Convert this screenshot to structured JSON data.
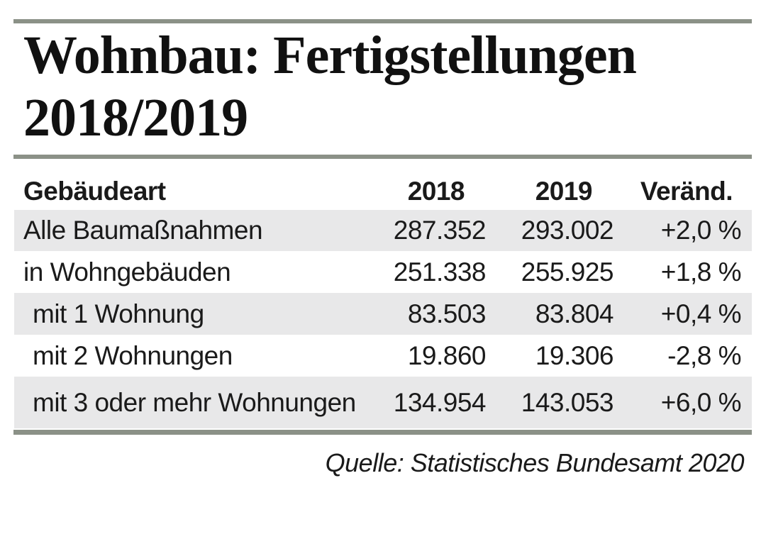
{
  "title": {
    "line1": "Wohnbau: Fertigstellungen",
    "line2": "2018/2019"
  },
  "table": {
    "headers": [
      "Gebäudeart",
      "2018",
      "2019",
      "Veränd."
    ],
    "rows": [
      {
        "label": "Alle Baumaßnahmen",
        "y2018": "287.352",
        "y2019": "293.002",
        "change": "+2,0 %"
      },
      {
        "label": "in Wohngebäuden",
        "y2018": "251.338",
        "y2019": "255.925",
        "change": "+1,8 %"
      },
      {
        "label": "mit 1 Wohnung",
        "y2018": "83.503",
        "y2019": "83.804",
        "change": "+0,4 %"
      },
      {
        "label": "mit 2 Wohnungen",
        "y2018": "19.860",
        "y2019": "19.306",
        "change": "-2,8 %"
      },
      {
        "label": "mit 3 oder mehr Wohnungen",
        "y2018": "134.954",
        "y2019": "143.053",
        "change": "+6,0 %"
      }
    ]
  },
  "source": "Quelle: Statistisches Bundesamt 2020",
  "colors": {
    "accent_bar": "#8b9187",
    "row_shade": "#e8e8e9",
    "text": "#1a1a1a"
  },
  "chart_data": {
    "type": "table",
    "title": "Wohnbau: Fertigstellungen 2018/2019",
    "columns": [
      "Gebäudeart",
      "2018",
      "2019",
      "Veränd."
    ],
    "rows": [
      [
        "Alle Baumaßnahmen",
        287352,
        293002,
        "+2,0 %"
      ],
      [
        "in Wohngebäuden",
        251338,
        255925,
        "+1,8 %"
      ],
      [
        "mit 1 Wohnung",
        83503,
        83804,
        "+0,4 %"
      ],
      [
        "mit 2 Wohnungen",
        19860,
        19306,
        "-2,8 %"
      ],
      [
        "mit 3 oder mehr Wohnungen",
        134954,
        143053,
        "+6,0 %"
      ]
    ],
    "row_indent_levels": [
      0,
      0,
      1,
      1,
      1
    ],
    "source": "Quelle: Statistisches Bundesamt 2020",
    "layout": {
      "shaded_rows": [
        0,
        2,
        4
      ],
      "value_alignment": "right",
      "accent_bars": [
        "top",
        "below-title",
        "below-table"
      ]
    }
  }
}
